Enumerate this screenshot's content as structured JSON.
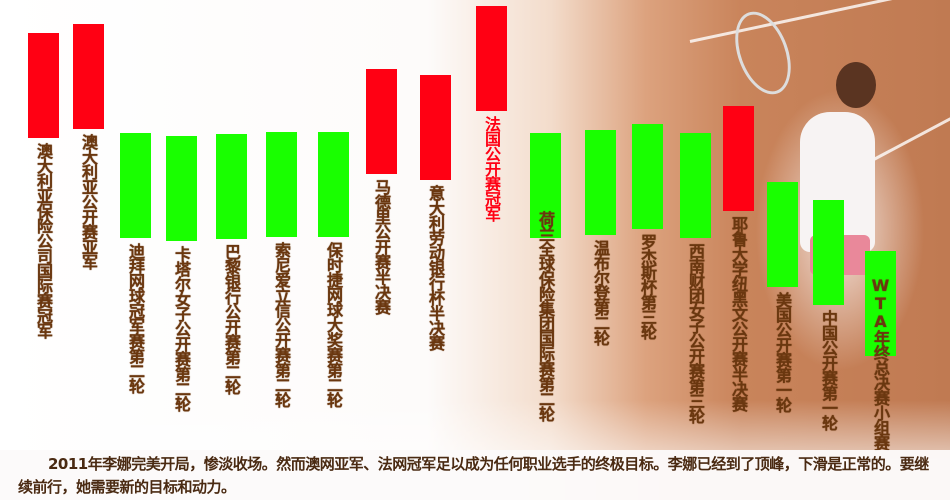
{
  "chart_data": {
    "type": "floating-bar",
    "colors": {
      "red": "#ff0013",
      "green": "#19ff00",
      "label": "#6a370f",
      "highlight_label": "#ff0013"
    },
    "categories": [
      {
        "label": "澳大利亚保险公司国际赛冠军",
        "color": "red"
      },
      {
        "label": "澳大利亚公开赛亚军",
        "color": "red"
      },
      {
        "label": "迪拜网球冠军赛第二轮",
        "color": "green"
      },
      {
        "label": "卡塔尔女子公开赛第二轮",
        "color": "green"
      },
      {
        "label": "巴黎银行公开赛第二轮",
        "color": "green"
      },
      {
        "label": "索尼爱立信公开赛第二轮",
        "color": "green"
      },
      {
        "label": "保时捷网球大奖赛第二轮",
        "color": "green"
      },
      {
        "label": "马德里公开赛半决赛",
        "color": "red"
      },
      {
        "label": "意大利劳动银行杯半决赛",
        "color": "red"
      },
      {
        "label": "法国公开赛冠军",
        "color": "red",
        "highlight": true
      },
      {
        "label": "荷兰全球保险集团国际赛第二轮",
        "color": "green"
      },
      {
        "label": "温布尔登第二轮",
        "color": "green"
      },
      {
        "label": "罗杰斯杯第三轮",
        "color": "green"
      },
      {
        "label": "西南财团女子公开赛第三轮",
        "color": "green"
      },
      {
        "label": "耶鲁大学纽黑文公开赛半决赛",
        "color": "red"
      },
      {
        "label": "美国公开赛第一轮",
        "color": "green"
      },
      {
        "label": "中国公开赛第一轮",
        "color": "green"
      },
      {
        "label": "WTA年终总决赛小组赛",
        "color": "green"
      }
    ]
  },
  "caption": "2011年李娜完美开局，惨淡收场。然而澳网亚军、法网冠军足以成为任何职业选手的终极目标。李娜已经到了顶峰，下滑是正常的。要继续前行，她需要新的目标和动力。"
}
